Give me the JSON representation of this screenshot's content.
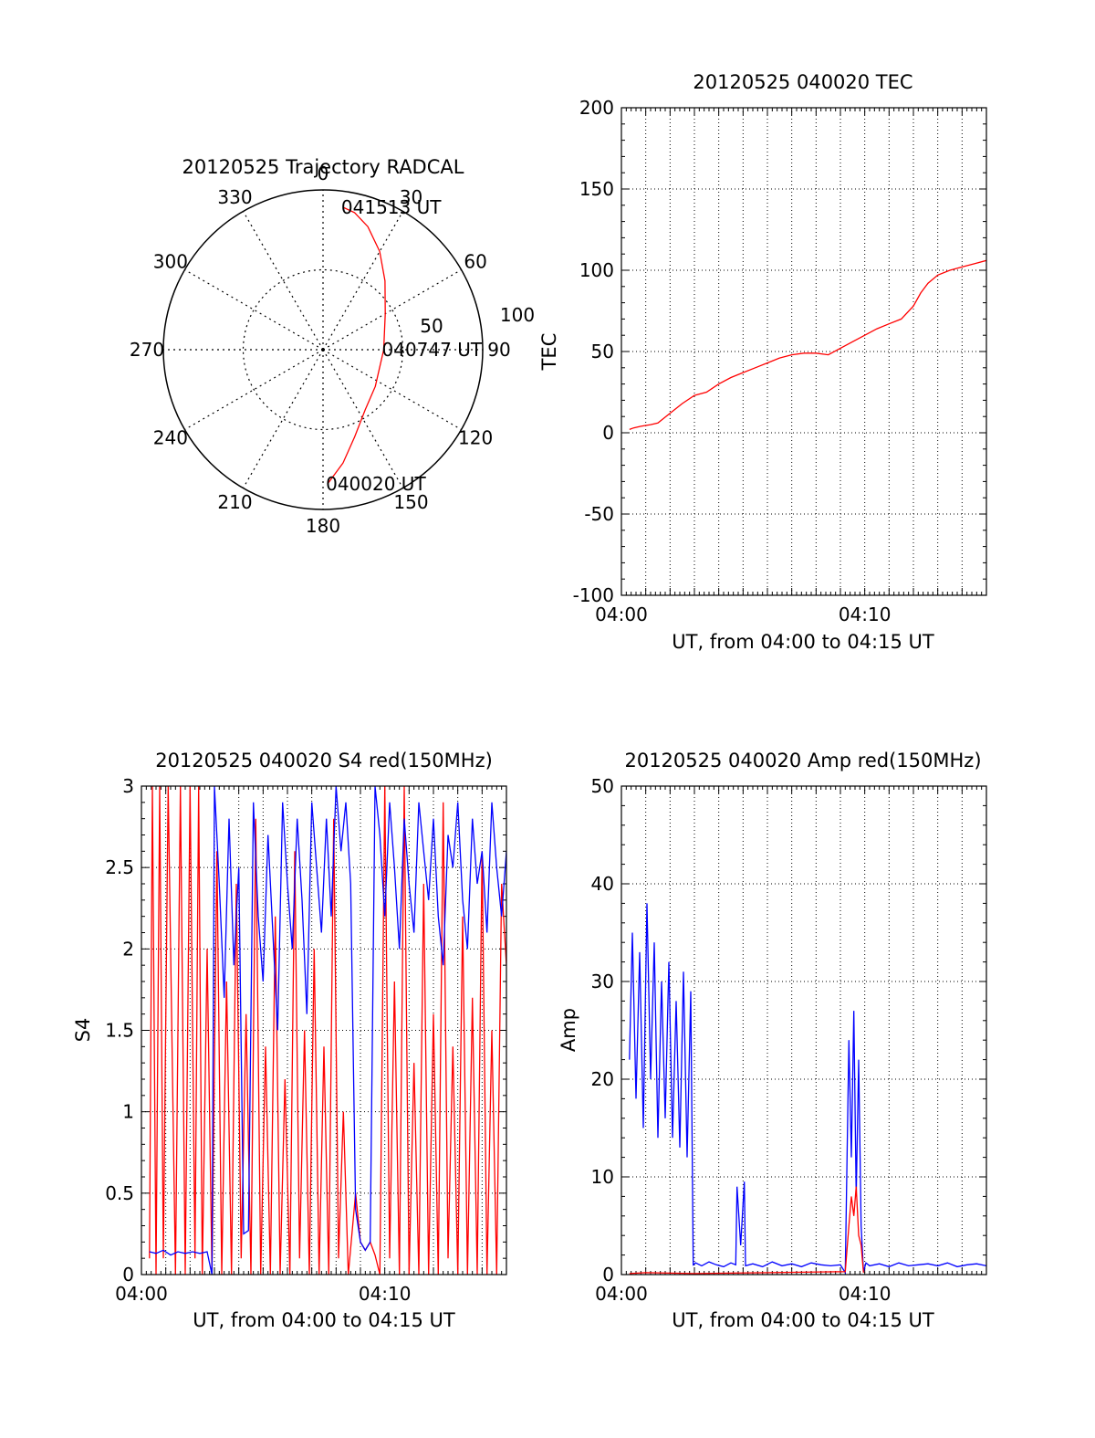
{
  "colors": {
    "red": "#ff0000",
    "blue": "#0000ff",
    "axis": "#000000",
    "grid": "#000000"
  },
  "chart_data": [
    {
      "id": "trajectory",
      "type": "polar",
      "title": "20120525 Trajectory RADCAL",
      "azimuth_labels": [
        "0",
        "30",
        "60",
        "90",
        "120",
        "150",
        "180",
        "210",
        "240",
        "270",
        "300",
        "330"
      ],
      "radius_labels": [
        "50",
        "100"
      ],
      "radius_max": 100,
      "track": [
        {
          "az": 178,
          "r": 84
        },
        {
          "az": 170,
          "r": 72
        },
        {
          "az": 160,
          "r": 58
        },
        {
          "az": 145,
          "r": 46
        },
        {
          "az": 125,
          "r": 40
        },
        {
          "az": 90,
          "r": 38
        },
        {
          "az": 60,
          "r": 45
        },
        {
          "az": 42,
          "r": 58
        },
        {
          "az": 30,
          "r": 71
        },
        {
          "az": 20,
          "r": 82
        },
        {
          "az": 13,
          "r": 88
        },
        {
          "az": 8,
          "r": 90
        }
      ],
      "annotations": [
        {
          "text": "040020 UT",
          "az": 178,
          "r": 84
        },
        {
          "text": "040747 UT",
          "az": 90,
          "r": 38
        },
        {
          "text": "041513 UT",
          "az": 8,
          "r": 90
        }
      ]
    },
    {
      "id": "tec",
      "type": "line",
      "title": "20120525 040020 TEC",
      "xlabel": "UT, from 04:00 to 04:15 UT",
      "ylabel": "TEC",
      "xlim": [
        0,
        15
      ],
      "ylim": [
        -100,
        200
      ],
      "xticks": [
        {
          "v": 0,
          "label": "04:00"
        },
        {
          "v": 10,
          "label": "04:10"
        }
      ],
      "yticks": [
        {
          "v": -100,
          "label": "-100"
        },
        {
          "v": -50,
          "label": "-50"
        },
        {
          "v": 0,
          "label": "0"
        },
        {
          "v": 50,
          "label": "50"
        },
        {
          "v": 100,
          "label": "100"
        },
        {
          "v": 150,
          "label": "150"
        },
        {
          "v": 200,
          "label": "200"
        }
      ],
      "grid": true,
      "series": [
        {
          "color": "red",
          "x": [
            0.33,
            0.5,
            0.8,
            1.2,
            1.5,
            2.0,
            2.5,
            3.0,
            3.5,
            4.0,
            4.5,
            5.0,
            5.5,
            6.0,
            6.5,
            7.0,
            7.5,
            8.0,
            8.5,
            9.0,
            9.5,
            10.0,
            10.5,
            11.0,
            11.5,
            12.0,
            12.3,
            12.6,
            13.0,
            13.5,
            14.0,
            14.5,
            15.0
          ],
          "y": [
            2,
            3,
            4,
            5,
            6,
            12,
            18,
            23,
            25,
            30,
            34,
            37,
            40,
            43,
            46,
            48,
            49,
            49,
            48,
            52,
            56,
            60,
            64,
            67,
            70,
            78,
            86,
            92,
            97,
            100,
            102,
            104,
            106
          ]
        }
      ]
    },
    {
      "id": "s4",
      "type": "line",
      "title": "20120525 040020 S4 red(150MHz)",
      "xlabel": "UT, from 04:00 to 04:15 UT",
      "ylabel": "S4",
      "xlim": [
        0,
        15
      ],
      "ylim": [
        0,
        3
      ],
      "xticks": [
        {
          "v": 0,
          "label": "04:00"
        },
        {
          "v": 10,
          "label": "04:10"
        }
      ],
      "yticks": [
        {
          "v": 0,
          "label": "0"
        },
        {
          "v": 0.5,
          "label": "0.5"
        },
        {
          "v": 1,
          "label": "1"
        },
        {
          "v": 1.5,
          "label": "1.5"
        },
        {
          "v": 2,
          "label": "2"
        },
        {
          "v": 2.5,
          "label": "2.5"
        },
        {
          "v": 3,
          "label": "3"
        }
      ],
      "grid": true,
      "series": [
        {
          "color": "red",
          "x": [
            0.33,
            0.45,
            0.6,
            0.75,
            0.9,
            1.1,
            1.4,
            1.6,
            1.8,
            2.0,
            2.2,
            2.35,
            2.5,
            2.7,
            2.9,
            3.1,
            3.3,
            3.5,
            3.7,
            3.9,
            4.1,
            4.3,
            4.5,
            4.7,
            4.9,
            5.1,
            5.3,
            5.5,
            5.7,
            5.9,
            6.1,
            6.3,
            6.5,
            6.7,
            6.9,
            7.1,
            7.3,
            7.5,
            7.7,
            7.9,
            8.1,
            8.3,
            8.5,
            8.8,
            9.0,
            9.2,
            9.4,
            9.6,
            9.8,
            10.0,
            10.2,
            10.4,
            10.6,
            10.8,
            11.0,
            11.2,
            11.4,
            11.6,
            11.8,
            12.0,
            12.2,
            12.4,
            12.6,
            12.8,
            13.0,
            13.2,
            13.4,
            13.6,
            13.8,
            14.0,
            14.2,
            14.4,
            14.6,
            14.8,
            15.0
          ],
          "y": [
            0.1,
            3.0,
            0.0,
            3.0,
            0.1,
            3.0,
            0.0,
            3.0,
            0.0,
            3.0,
            0.1,
            3.0,
            0.0,
            2.0,
            0.0,
            2.6,
            0.0,
            1.8,
            0.0,
            2.4,
            0.1,
            1.6,
            0.0,
            2.8,
            0.0,
            1.4,
            0.0,
            2.2,
            0.0,
            1.2,
            0.0,
            2.6,
            0.1,
            1.5,
            0.0,
            2.0,
            0.0,
            1.4,
            0.0,
            2.8,
            0.1,
            1.0,
            0.0,
            0.5,
            0.2,
            0.15,
            0.2,
            0.12,
            0.0,
            3.0,
            0.1,
            1.8,
            0.0,
            3.0,
            0.0,
            1.3,
            0.0,
            2.4,
            0.0,
            1.6,
            0.0,
            2.9,
            0.1,
            1.4,
            0.0,
            2.2,
            0.0,
            1.7,
            0.0,
            2.6,
            0.0,
            1.5,
            0.0,
            2.4,
            1.9
          ]
        },
        {
          "color": "blue",
          "x": [
            0.33,
            0.6,
            0.9,
            1.2,
            1.5,
            1.8,
            2.1,
            2.4,
            2.7,
            2.9,
            3.0,
            3.2,
            3.4,
            3.6,
            3.8,
            4.0,
            4.2,
            4.4,
            4.6,
            4.8,
            5.0,
            5.2,
            5.4,
            5.6,
            5.8,
            6.0,
            6.2,
            6.4,
            6.6,
            6.8,
            7.0,
            7.2,
            7.4,
            7.6,
            7.8,
            8.0,
            8.2,
            8.4,
            8.6,
            8.8,
            9.0,
            9.2,
            9.4,
            9.6,
            9.8,
            10.0,
            10.2,
            10.4,
            10.6,
            10.8,
            11.0,
            11.2,
            11.4,
            11.6,
            11.8,
            12.0,
            12.2,
            12.4,
            12.6,
            12.8,
            13.0,
            13.2,
            13.4,
            13.6,
            13.8,
            14.0,
            14.2,
            14.4,
            14.6,
            14.8,
            15.0
          ],
          "y": [
            0.14,
            0.13,
            0.15,
            0.12,
            0.14,
            0.13,
            0.14,
            0.13,
            0.14,
            0.0,
            3.0,
            2.4,
            1.7,
            2.8,
            1.9,
            2.5,
            0.25,
            0.27,
            2.9,
            2.2,
            1.8,
            2.7,
            2.1,
            1.5,
            2.9,
            2.4,
            2.0,
            2.8,
            2.3,
            1.6,
            2.9,
            2.5,
            2.1,
            2.8,
            2.2,
            3.0,
            2.6,
            2.9,
            2.4,
            0.4,
            0.2,
            0.15,
            0.2,
            3.0,
            2.7,
            2.2,
            2.9,
            2.5,
            2.0,
            2.8,
            2.4,
            2.1,
            2.9,
            2.6,
            2.3,
            2.8,
            2.2,
            1.9,
            2.7,
            2.5,
            2.9,
            2.3,
            2.0,
            2.8,
            2.4,
            2.6,
            2.1,
            2.9,
            2.5,
            2.2,
            2.6
          ]
        }
      ]
    },
    {
      "id": "amp",
      "type": "line",
      "title": "20120525 040020 Amp red(150MHz)",
      "xlabel": "UT, from 04:00 to 04:15 UT",
      "ylabel": "Amp",
      "xlim": [
        0,
        15
      ],
      "ylim": [
        0,
        50
      ],
      "xticks": [
        {
          "v": 0,
          "label": "04:00"
        },
        {
          "v": 10,
          "label": "04:10"
        }
      ],
      "yticks": [
        {
          "v": 0,
          "label": "0"
        },
        {
          "v": 10,
          "label": "10"
        },
        {
          "v": 20,
          "label": "20"
        },
        {
          "v": 30,
          "label": "30"
        },
        {
          "v": 40,
          "label": "40"
        },
        {
          "v": 50,
          "label": "50"
        }
      ],
      "grid": true,
      "series": [
        {
          "color": "blue",
          "x": [
            0.33,
            0.45,
            0.6,
            0.75,
            0.9,
            1.05,
            1.2,
            1.35,
            1.5,
            1.65,
            1.8,
            1.95,
            2.1,
            2.25,
            2.4,
            2.55,
            2.7,
            2.85,
            2.95,
            3.05,
            3.3,
            3.6,
            3.9,
            4.2,
            4.5,
            4.7,
            4.75,
            4.9,
            5.05,
            5.1,
            5.4,
            5.8,
            6.2,
            6.6,
            7.0,
            7.4,
            7.8,
            8.2,
            8.6,
            9.0,
            9.2,
            9.35,
            9.45,
            9.55,
            9.65,
            9.75,
            9.85,
            9.95,
            10.05,
            10.2,
            10.6,
            11.0,
            11.4,
            11.8,
            12.2,
            12.6,
            13.0,
            13.4,
            13.8,
            14.2,
            14.6,
            15.0
          ],
          "y": [
            22,
            35,
            18,
            33,
            15,
            38,
            20,
            34,
            14,
            30,
            16,
            32,
            14,
            28,
            13,
            31,
            12,
            29,
            1,
            1.2,
            0.9,
            1.3,
            1.0,
            0.8,
            1.2,
            1.0,
            9,
            3,
            9.5,
            0.9,
            1.1,
            0.8,
            1.3,
            0.9,
            1.1,
            0.8,
            1.2,
            1.0,
            0.9,
            1.0,
            0.2,
            24,
            12,
            27,
            8,
            22,
            5,
            0.3,
            1.2,
            0.9,
            1.1,
            0.8,
            1.2,
            0.9,
            1.0,
            1.1,
            0.9,
            1.2,
            0.8,
            1.0,
            1.1,
            0.9
          ]
        },
        {
          "color": "red",
          "x": [
            0.33,
            1.0,
            2.0,
            3.0,
            9.2,
            9.35,
            9.45,
            9.55,
            9.65,
            9.75,
            9.85,
            9.95
          ],
          "y": [
            0.1,
            0.2,
            0.15,
            0.1,
            0.3,
            5,
            8,
            6,
            9,
            4,
            3,
            0.2
          ]
        }
      ]
    }
  ]
}
